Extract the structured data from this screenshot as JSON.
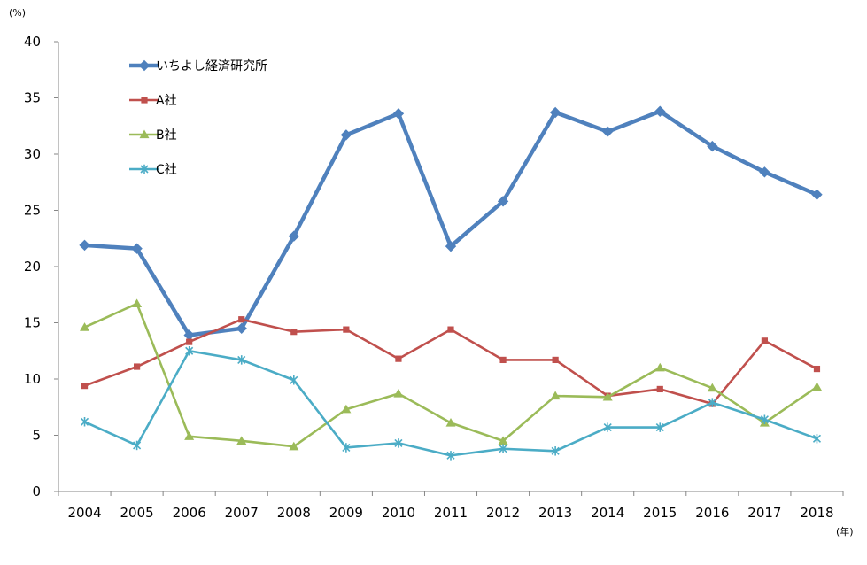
{
  "chart_data": {
    "type": "line",
    "y_unit": "(%)",
    "x_unit": "(年)",
    "ylim": [
      0,
      40
    ],
    "yticks": [
      0,
      5,
      10,
      15,
      20,
      25,
      30,
      35,
      40
    ],
    "categories": [
      "2004",
      "2005",
      "2006",
      "2007",
      "2008",
      "2009",
      "2010",
      "2011",
      "2012",
      "2013",
      "2014",
      "2015",
      "2016",
      "2017",
      "2018"
    ],
    "grid": false,
    "legend_position": "top-left",
    "series": [
      {
        "name": "いちよし経済研究所",
        "color": "#4f81bd",
        "marker": "diamond",
        "values": [
          21.9,
          21.6,
          13.9,
          14.5,
          22.7,
          31.7,
          33.6,
          21.8,
          25.8,
          33.7,
          32.0,
          33.8,
          30.7,
          28.4,
          26.4
        ]
      },
      {
        "name": "A社",
        "color": "#c0504d",
        "marker": "square",
        "values": [
          9.4,
          11.1,
          13.3,
          15.3,
          14.2,
          14.4,
          11.8,
          14.4,
          11.7,
          11.7,
          8.5,
          9.1,
          7.8,
          13.4,
          10.9
        ]
      },
      {
        "name": "B社",
        "color": "#9bbb59",
        "marker": "triangle",
        "values": [
          14.6,
          16.7,
          4.9,
          4.5,
          4.0,
          7.3,
          8.7,
          6.1,
          4.5,
          8.5,
          8.4,
          11.0,
          9.2,
          6.1,
          9.3
        ]
      },
      {
        "name": "C社",
        "color": "#4bacc6",
        "marker": "star",
        "values": [
          6.2,
          4.1,
          12.5,
          11.7,
          9.9,
          3.9,
          4.3,
          3.2,
          3.8,
          3.6,
          5.7,
          5.7,
          7.9,
          6.4,
          4.7
        ]
      }
    ]
  }
}
